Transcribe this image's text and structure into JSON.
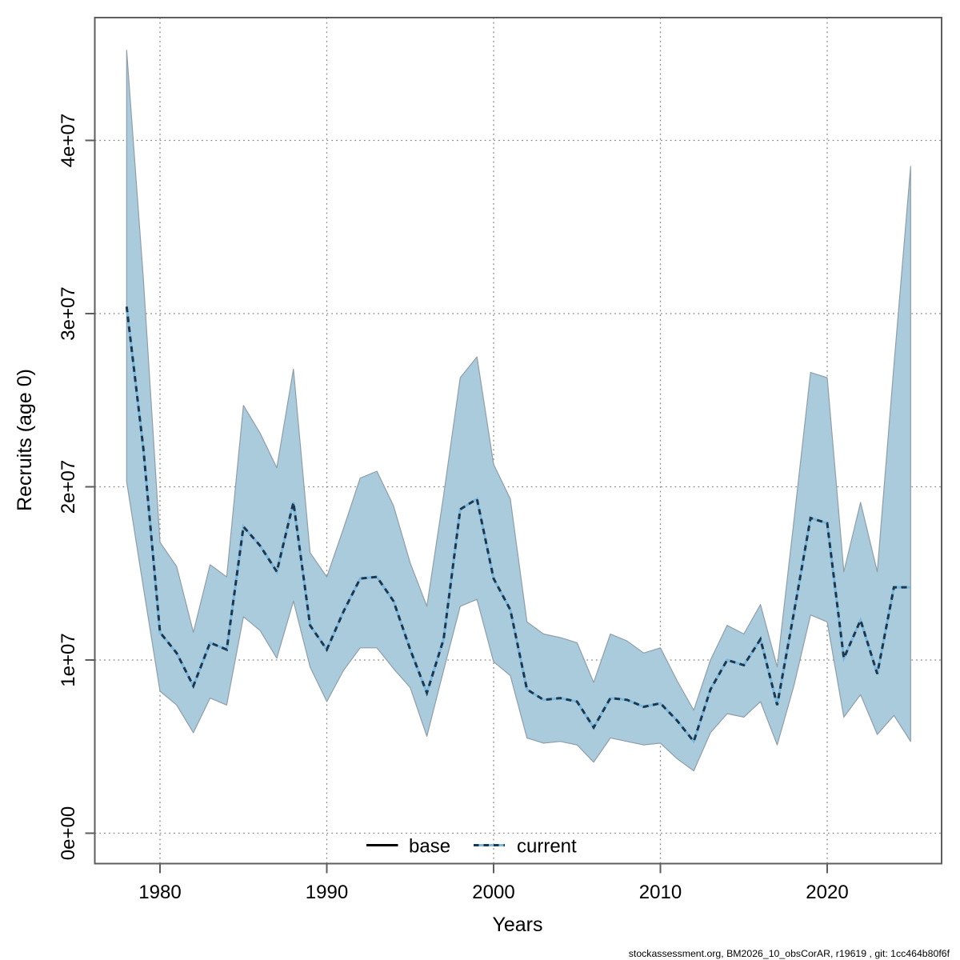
{
  "footer": "stockassessment.org, BM2026_10_obsCorAR, r19619 , git: 1cc464b80f6f",
  "colors": {
    "band": "#a9cbdc",
    "band_edge": "#8f9ea9",
    "current_dark": "#1c3750",
    "current_light": "#7db9de",
    "base": "#000000",
    "frame": "#5e5e5e",
    "grid": "#878787",
    "tick": "#5e5e5e",
    "text": "#000000"
  },
  "chart_data": {
    "type": "line",
    "title": "",
    "xlabel": "Years",
    "ylabel": "Recruits (age 0)",
    "grid": "dotted",
    "legend_position": "bottom-center-inside",
    "value_unit": "millions of recruits (1e6)",
    "ylim": [
      0,
      47000000
    ],
    "xlim": [
      1976,
      2027
    ],
    "note": "Shaded region is the confidence band of 'current'; dashed line is the 'current' median. 'base' (solid) coincides with 'current' and is not separately visible.",
    "legend": [
      {
        "label": "base",
        "style": "solid",
        "color": "#000000"
      },
      {
        "label": "current",
        "style": "dashed",
        "color": "#1c3750"
      }
    ],
    "axes": {
      "x": {
        "label": "Years",
        "ticks": [
          {
            "value": 1980,
            "label": "1980"
          },
          {
            "value": 1990,
            "label": "1990"
          },
          {
            "value": 2000,
            "label": "2000"
          },
          {
            "value": 2010,
            "label": "2010"
          },
          {
            "value": 2020,
            "label": "2020"
          }
        ]
      },
      "y": {
        "label": "Recruits (age 0)",
        "ticks": [
          {
            "value": 0,
            "label": "0e+00"
          },
          {
            "value": 10,
            "label": "1e+07"
          },
          {
            "value": 20,
            "label": "2e+07"
          },
          {
            "value": 30,
            "label": "3e+07"
          },
          {
            "value": 40,
            "label": "4e+07"
          }
        ]
      }
    },
    "x_years": [
      1978,
      1979,
      1980,
      1981,
      1982,
      1983,
      1984,
      1985,
      1986,
      1987,
      1988,
      1989,
      1990,
      1991,
      1992,
      1993,
      1994,
      1995,
      1996,
      1997,
      1998,
      1999,
      2000,
      2001,
      2002,
      2003,
      2004,
      2005,
      2006,
      2007,
      2008,
      2009,
      2010,
      2011,
      2012,
      2013,
      2014,
      2015,
      2016,
      2017,
      2018,
      2019,
      2020,
      2021,
      2022,
      2023,
      2024,
      2025
    ],
    "series": [
      {
        "name": "current",
        "line_style": "dashed",
        "median": [
          30.4,
          22.2,
          11.6,
          10.4,
          8.5,
          11.0,
          10.6,
          17.7,
          16.6,
          15.1,
          19.1,
          12.0,
          10.6,
          12.8,
          14.7,
          14.8,
          13.4,
          10.6,
          8.1,
          11.2,
          18.7,
          19.3,
          14.7,
          12.9,
          8.3,
          7.7,
          7.8,
          7.6,
          6.1,
          7.8,
          7.7,
          7.3,
          7.5,
          6.5,
          5.3,
          8.3,
          10.0,
          9.7,
          11.2,
          7.4,
          12.7,
          18.2,
          17.9,
          10.1,
          12.3,
          9.2,
          14.2,
          14.2
        ],
        "ci_lower": [
          20.3,
          14.2,
          8.2,
          7.4,
          5.8,
          7.8,
          7.4,
          12.5,
          11.7,
          10.1,
          13.4,
          9.6,
          7.6,
          9.4,
          10.7,
          10.7,
          9.5,
          8.4,
          5.6,
          9.4,
          13.1,
          13.5,
          9.9,
          9.1,
          5.5,
          5.2,
          5.3,
          5.1,
          4.1,
          5.5,
          5.3,
          5.1,
          5.2,
          4.3,
          3.6,
          5.8,
          6.9,
          6.7,
          7.6,
          5.1,
          8.5,
          12.6,
          12.2,
          6.7,
          8.0,
          5.7,
          6.8,
          5.3
        ],
        "ci_upper": [
          45.2,
          32.0,
          16.8,
          15.4,
          11.6,
          15.5,
          14.8,
          24.7,
          23.1,
          21.1,
          26.8,
          16.2,
          14.8,
          17.6,
          20.5,
          20.9,
          18.9,
          15.6,
          13.1,
          19.5,
          26.3,
          27.5,
          21.3,
          19.3,
          12.2,
          11.5,
          11.3,
          11.0,
          8.7,
          11.5,
          11.1,
          10.4,
          10.7,
          8.8,
          7.1,
          10.0,
          12.0,
          11.5,
          13.2,
          9.6,
          18.0,
          26.6,
          26.3,
          15.1,
          19.1,
          15.1,
          27.0,
          38.5
        ]
      }
    ]
  }
}
